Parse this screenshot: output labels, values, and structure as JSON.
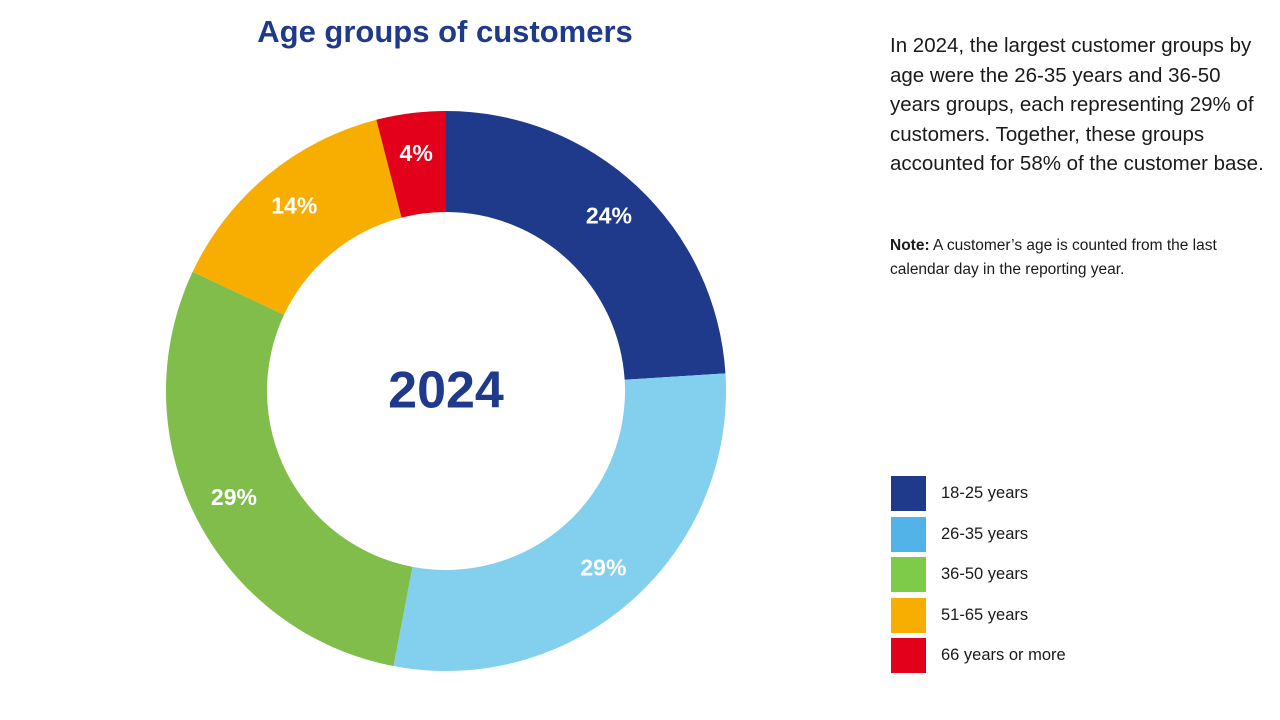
{
  "chart_data": {
    "type": "pie",
    "title": "Age groups of customers",
    "center_label": "2024",
    "categories": [
      "18-25 years",
      "26-35 years",
      "36-50 years",
      "51-65 years",
      "66 years or more"
    ],
    "values": [
      24,
      29,
      29,
      14,
      4
    ],
    "value_labels": [
      "24%",
      "29%",
      "29%",
      "14%",
      "4%"
    ],
    "unit": "%",
    "colors": [
      "#1f3a8a",
      "#82cfee",
      "#80bd4a",
      "#f8ae00",
      "#e2001a"
    ],
    "legend_colors": [
      "#1f3a8a",
      "#52b3e8",
      "#7ecb4a",
      "#f8ae00",
      "#e2001a"
    ],
    "legend_position": "bottom-right",
    "hole": true
  },
  "summary": {
    "text": "In 2024, the largest customer groups by age were the 26-35 years and 36-50 years groups, each representing 29% of customers. Together, these groups accounted for 58% of the customer base."
  },
  "note": {
    "label": "Note:",
    "text": " A customer’s age is counted from the last calendar day in the reporting year."
  }
}
